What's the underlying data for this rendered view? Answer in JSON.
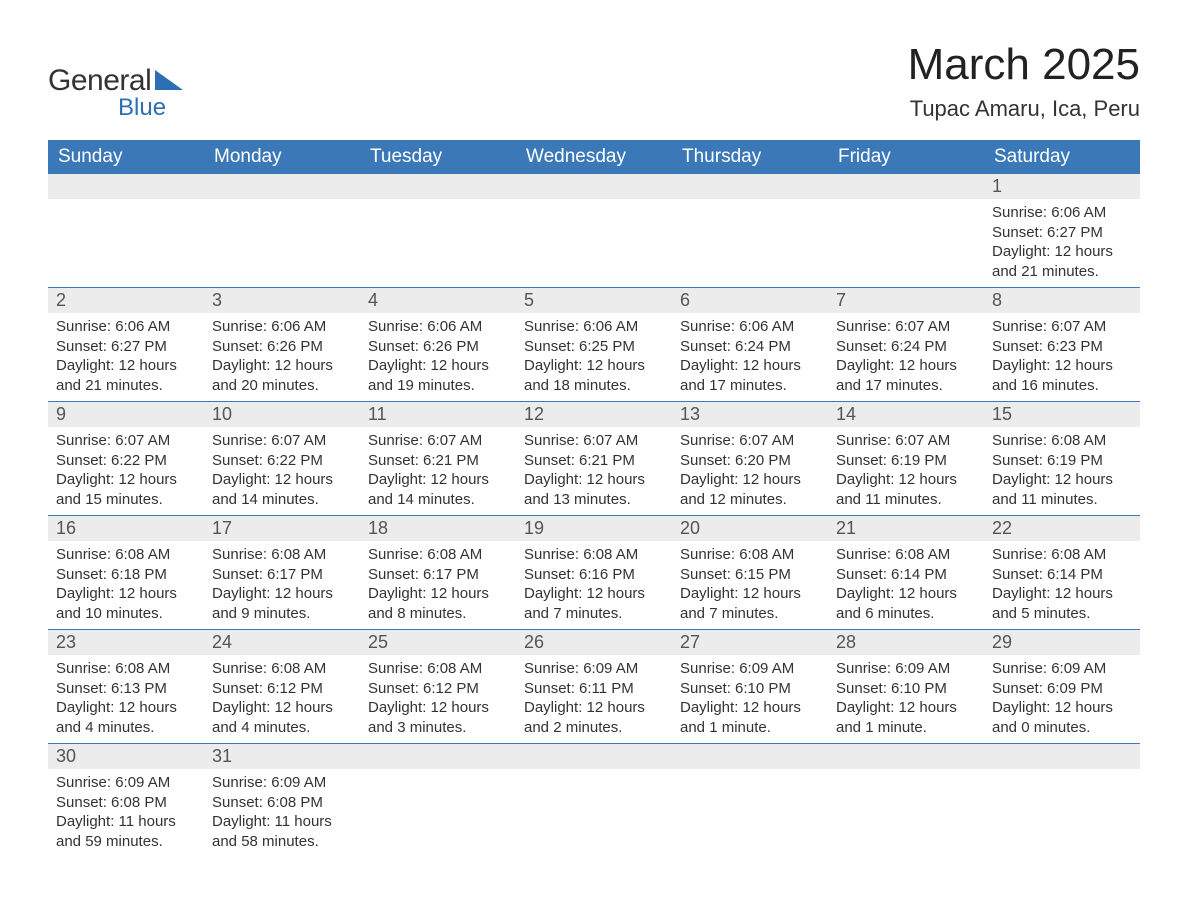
{
  "logo": {
    "text1": "General",
    "text2": "Blue"
  },
  "title": "March 2025",
  "location": "Tupac Amaru, Ica, Peru",
  "colors": {
    "header_bg": "#3a78b8",
    "header_text": "#ffffff",
    "daynum_bg": "#ececec",
    "border": "#3a78b8",
    "text": "#333333",
    "logo_blue": "#2d6fb3"
  },
  "weekdays": [
    "Sunday",
    "Monday",
    "Tuesday",
    "Wednesday",
    "Thursday",
    "Friday",
    "Saturday"
  ],
  "weeks": [
    [
      null,
      null,
      null,
      null,
      null,
      null,
      {
        "n": "1",
        "sr": "Sunrise: 6:06 AM",
        "ss": "Sunset: 6:27 PM",
        "d1": "Daylight: 12 hours",
        "d2": "and 21 minutes."
      }
    ],
    [
      {
        "n": "2",
        "sr": "Sunrise: 6:06 AM",
        "ss": "Sunset: 6:27 PM",
        "d1": "Daylight: 12 hours",
        "d2": "and 21 minutes."
      },
      {
        "n": "3",
        "sr": "Sunrise: 6:06 AM",
        "ss": "Sunset: 6:26 PM",
        "d1": "Daylight: 12 hours",
        "d2": "and 20 minutes."
      },
      {
        "n": "4",
        "sr": "Sunrise: 6:06 AM",
        "ss": "Sunset: 6:26 PM",
        "d1": "Daylight: 12 hours",
        "d2": "and 19 minutes."
      },
      {
        "n": "5",
        "sr": "Sunrise: 6:06 AM",
        "ss": "Sunset: 6:25 PM",
        "d1": "Daylight: 12 hours",
        "d2": "and 18 minutes."
      },
      {
        "n": "6",
        "sr": "Sunrise: 6:06 AM",
        "ss": "Sunset: 6:24 PM",
        "d1": "Daylight: 12 hours",
        "d2": "and 17 minutes."
      },
      {
        "n": "7",
        "sr": "Sunrise: 6:07 AM",
        "ss": "Sunset: 6:24 PM",
        "d1": "Daylight: 12 hours",
        "d2": "and 17 minutes."
      },
      {
        "n": "8",
        "sr": "Sunrise: 6:07 AM",
        "ss": "Sunset: 6:23 PM",
        "d1": "Daylight: 12 hours",
        "d2": "and 16 minutes."
      }
    ],
    [
      {
        "n": "9",
        "sr": "Sunrise: 6:07 AM",
        "ss": "Sunset: 6:22 PM",
        "d1": "Daylight: 12 hours",
        "d2": "and 15 minutes."
      },
      {
        "n": "10",
        "sr": "Sunrise: 6:07 AM",
        "ss": "Sunset: 6:22 PM",
        "d1": "Daylight: 12 hours",
        "d2": "and 14 minutes."
      },
      {
        "n": "11",
        "sr": "Sunrise: 6:07 AM",
        "ss": "Sunset: 6:21 PM",
        "d1": "Daylight: 12 hours",
        "d2": "and 14 minutes."
      },
      {
        "n": "12",
        "sr": "Sunrise: 6:07 AM",
        "ss": "Sunset: 6:21 PM",
        "d1": "Daylight: 12 hours",
        "d2": "and 13 minutes."
      },
      {
        "n": "13",
        "sr": "Sunrise: 6:07 AM",
        "ss": "Sunset: 6:20 PM",
        "d1": "Daylight: 12 hours",
        "d2": "and 12 minutes."
      },
      {
        "n": "14",
        "sr": "Sunrise: 6:07 AM",
        "ss": "Sunset: 6:19 PM",
        "d1": "Daylight: 12 hours",
        "d2": "and 11 minutes."
      },
      {
        "n": "15",
        "sr": "Sunrise: 6:08 AM",
        "ss": "Sunset: 6:19 PM",
        "d1": "Daylight: 12 hours",
        "d2": "and 11 minutes."
      }
    ],
    [
      {
        "n": "16",
        "sr": "Sunrise: 6:08 AM",
        "ss": "Sunset: 6:18 PM",
        "d1": "Daylight: 12 hours",
        "d2": "and 10 minutes."
      },
      {
        "n": "17",
        "sr": "Sunrise: 6:08 AM",
        "ss": "Sunset: 6:17 PM",
        "d1": "Daylight: 12 hours",
        "d2": "and 9 minutes."
      },
      {
        "n": "18",
        "sr": "Sunrise: 6:08 AM",
        "ss": "Sunset: 6:17 PM",
        "d1": "Daylight: 12 hours",
        "d2": "and 8 minutes."
      },
      {
        "n": "19",
        "sr": "Sunrise: 6:08 AM",
        "ss": "Sunset: 6:16 PM",
        "d1": "Daylight: 12 hours",
        "d2": "and 7 minutes."
      },
      {
        "n": "20",
        "sr": "Sunrise: 6:08 AM",
        "ss": "Sunset: 6:15 PM",
        "d1": "Daylight: 12 hours",
        "d2": "and 7 minutes."
      },
      {
        "n": "21",
        "sr": "Sunrise: 6:08 AM",
        "ss": "Sunset: 6:14 PM",
        "d1": "Daylight: 12 hours",
        "d2": "and 6 minutes."
      },
      {
        "n": "22",
        "sr": "Sunrise: 6:08 AM",
        "ss": "Sunset: 6:14 PM",
        "d1": "Daylight: 12 hours",
        "d2": "and 5 minutes."
      }
    ],
    [
      {
        "n": "23",
        "sr": "Sunrise: 6:08 AM",
        "ss": "Sunset: 6:13 PM",
        "d1": "Daylight: 12 hours",
        "d2": "and 4 minutes."
      },
      {
        "n": "24",
        "sr": "Sunrise: 6:08 AM",
        "ss": "Sunset: 6:12 PM",
        "d1": "Daylight: 12 hours",
        "d2": "and 4 minutes."
      },
      {
        "n": "25",
        "sr": "Sunrise: 6:08 AM",
        "ss": "Sunset: 6:12 PM",
        "d1": "Daylight: 12 hours",
        "d2": "and 3 minutes."
      },
      {
        "n": "26",
        "sr": "Sunrise: 6:09 AM",
        "ss": "Sunset: 6:11 PM",
        "d1": "Daylight: 12 hours",
        "d2": "and 2 minutes."
      },
      {
        "n": "27",
        "sr": "Sunrise: 6:09 AM",
        "ss": "Sunset: 6:10 PM",
        "d1": "Daylight: 12 hours",
        "d2": "and 1 minute."
      },
      {
        "n": "28",
        "sr": "Sunrise: 6:09 AM",
        "ss": "Sunset: 6:10 PM",
        "d1": "Daylight: 12 hours",
        "d2": "and 1 minute."
      },
      {
        "n": "29",
        "sr": "Sunrise: 6:09 AM",
        "ss": "Sunset: 6:09 PM",
        "d1": "Daylight: 12 hours",
        "d2": "and 0 minutes."
      }
    ],
    [
      {
        "n": "30",
        "sr": "Sunrise: 6:09 AM",
        "ss": "Sunset: 6:08 PM",
        "d1": "Daylight: 11 hours",
        "d2": "and 59 minutes."
      },
      {
        "n": "31",
        "sr": "Sunrise: 6:09 AM",
        "ss": "Sunset: 6:08 PM",
        "d1": "Daylight: 11 hours",
        "d2": "and 58 minutes."
      },
      null,
      null,
      null,
      null,
      null
    ]
  ]
}
